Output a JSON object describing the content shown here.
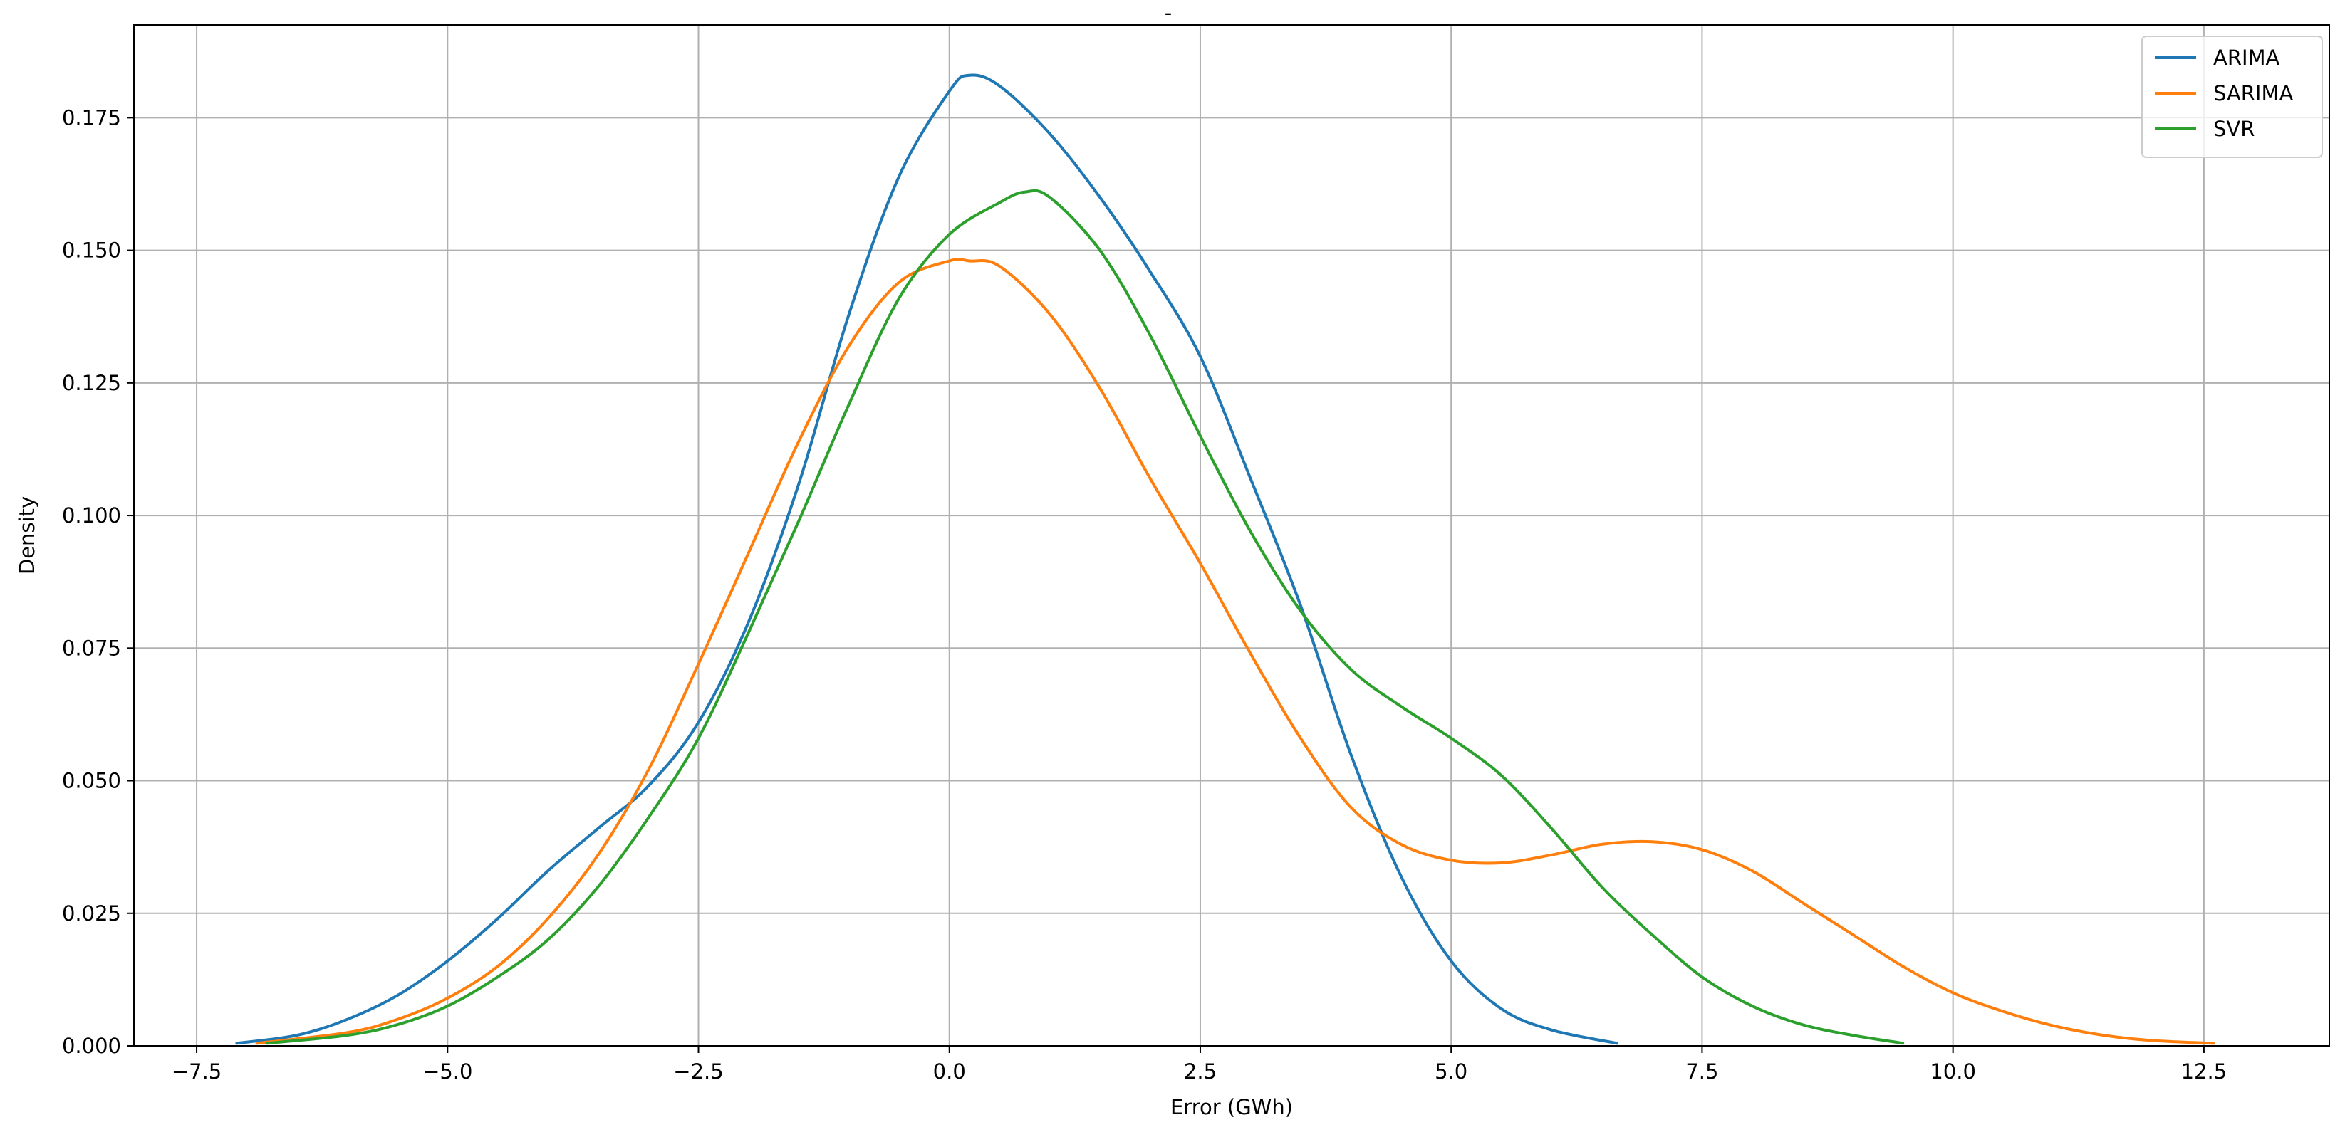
{
  "chart_data": {
    "type": "line",
    "title": "-",
    "xlabel": "Error (GWh)",
    "ylabel": "Density",
    "xlim": [
      -8.125,
      13.75
    ],
    "ylim": [
      0,
      0.1925
    ],
    "xticks": [
      -7.5,
      -5.0,
      -2.5,
      0.0,
      2.5,
      5.0,
      7.5,
      10.0,
      12.5
    ],
    "xtick_labels": [
      "−7.5",
      "−5.0",
      "−2.5",
      "0.0",
      "2.5",
      "5.0",
      "7.5",
      "10.0",
      "12.5"
    ],
    "yticks": [
      0.0,
      0.025,
      0.05,
      0.075,
      0.1,
      0.125,
      0.15,
      0.175
    ],
    "ytick_labels": [
      "0.000",
      "0.025",
      "0.050",
      "0.075",
      "0.100",
      "0.125",
      "0.150",
      "0.175"
    ],
    "grid": true,
    "legend_position": "top-right",
    "series": [
      {
        "name": "ARIMA",
        "color": "#1f77b4",
        "points": [
          [
            -7.1,
            0.0005
          ],
          [
            -6.5,
            0.002
          ],
          [
            -6.0,
            0.005
          ],
          [
            -5.5,
            0.0095
          ],
          [
            -5.0,
            0.016
          ],
          [
            -4.5,
            0.024
          ],
          [
            -4.0,
            0.033
          ],
          [
            -3.5,
            0.041
          ],
          [
            -3.0,
            0.049
          ],
          [
            -2.5,
            0.061
          ],
          [
            -2.0,
            0.08
          ],
          [
            -1.5,
            0.106
          ],
          [
            -1.0,
            0.138
          ],
          [
            -0.5,
            0.164
          ],
          [
            0.0,
            0.18
          ],
          [
            0.2,
            0.183
          ],
          [
            0.5,
            0.181
          ],
          [
            1.0,
            0.172
          ],
          [
            1.5,
            0.16
          ],
          [
            2.0,
            0.146
          ],
          [
            2.5,
            0.13
          ],
          [
            3.0,
            0.107
          ],
          [
            3.5,
            0.083
          ],
          [
            4.0,
            0.055
          ],
          [
            4.5,
            0.032
          ],
          [
            5.0,
            0.016
          ],
          [
            5.5,
            0.007
          ],
          [
            6.0,
            0.003
          ],
          [
            6.65,
            0.0005
          ]
        ]
      },
      {
        "name": "SARIMA",
        "color": "#ff7f0e",
        "points": [
          [
            -6.9,
            0.0005
          ],
          [
            -6.0,
            0.0025
          ],
          [
            -5.5,
            0.005
          ],
          [
            -5.0,
            0.009
          ],
          [
            -4.5,
            0.015
          ],
          [
            -4.0,
            0.024
          ],
          [
            -3.5,
            0.036
          ],
          [
            -3.0,
            0.052
          ],
          [
            -2.5,
            0.072
          ],
          [
            -2.0,
            0.093
          ],
          [
            -1.5,
            0.114
          ],
          [
            -1.0,
            0.132
          ],
          [
            -0.5,
            0.144
          ],
          [
            0.0,
            0.148
          ],
          [
            0.2,
            0.148
          ],
          [
            0.5,
            0.147
          ],
          [
            1.0,
            0.138
          ],
          [
            1.5,
            0.124
          ],
          [
            2.0,
            0.107
          ],
          [
            2.5,
            0.091
          ],
          [
            3.0,
            0.074
          ],
          [
            3.5,
            0.058
          ],
          [
            4.0,
            0.045
          ],
          [
            4.5,
            0.038
          ],
          [
            5.0,
            0.035
          ],
          [
            5.5,
            0.0345
          ],
          [
            6.0,
            0.036
          ],
          [
            6.5,
            0.038
          ],
          [
            7.0,
            0.0385
          ],
          [
            7.5,
            0.037
          ],
          [
            8.0,
            0.033
          ],
          [
            8.5,
            0.027
          ],
          [
            9.0,
            0.021
          ],
          [
            9.5,
            0.015
          ],
          [
            10.0,
            0.01
          ],
          [
            10.5,
            0.0065
          ],
          [
            11.0,
            0.0038
          ],
          [
            11.5,
            0.002
          ],
          [
            12.0,
            0.001
          ],
          [
            12.6,
            0.0005
          ]
        ]
      },
      {
        "name": "SVR",
        "color": "#2ca02c",
        "points": [
          [
            -6.8,
            0.0005
          ],
          [
            -6.0,
            0.002
          ],
          [
            -5.5,
            0.004
          ],
          [
            -5.0,
            0.0075
          ],
          [
            -4.5,
            0.013
          ],
          [
            -4.0,
            0.02
          ],
          [
            -3.5,
            0.03
          ],
          [
            -3.0,
            0.043
          ],
          [
            -2.5,
            0.058
          ],
          [
            -2.0,
            0.078
          ],
          [
            -1.5,
            0.099
          ],
          [
            -1.0,
            0.121
          ],
          [
            -0.5,
            0.141
          ],
          [
            0.0,
            0.153
          ],
          [
            0.5,
            0.159
          ],
          [
            0.75,
            0.161
          ],
          [
            1.0,
            0.16
          ],
          [
            1.5,
            0.15
          ],
          [
            2.0,
            0.134
          ],
          [
            2.5,
            0.115
          ],
          [
            3.0,
            0.097
          ],
          [
            3.5,
            0.082
          ],
          [
            4.0,
            0.071
          ],
          [
            4.5,
            0.064
          ],
          [
            5.0,
            0.058
          ],
          [
            5.5,
            0.051
          ],
          [
            6.0,
            0.041
          ],
          [
            6.5,
            0.03
          ],
          [
            7.0,
            0.021
          ],
          [
            7.5,
            0.013
          ],
          [
            8.0,
            0.0075
          ],
          [
            8.5,
            0.004
          ],
          [
            9.0,
            0.002
          ],
          [
            9.5,
            0.0005
          ]
        ]
      }
    ]
  }
}
